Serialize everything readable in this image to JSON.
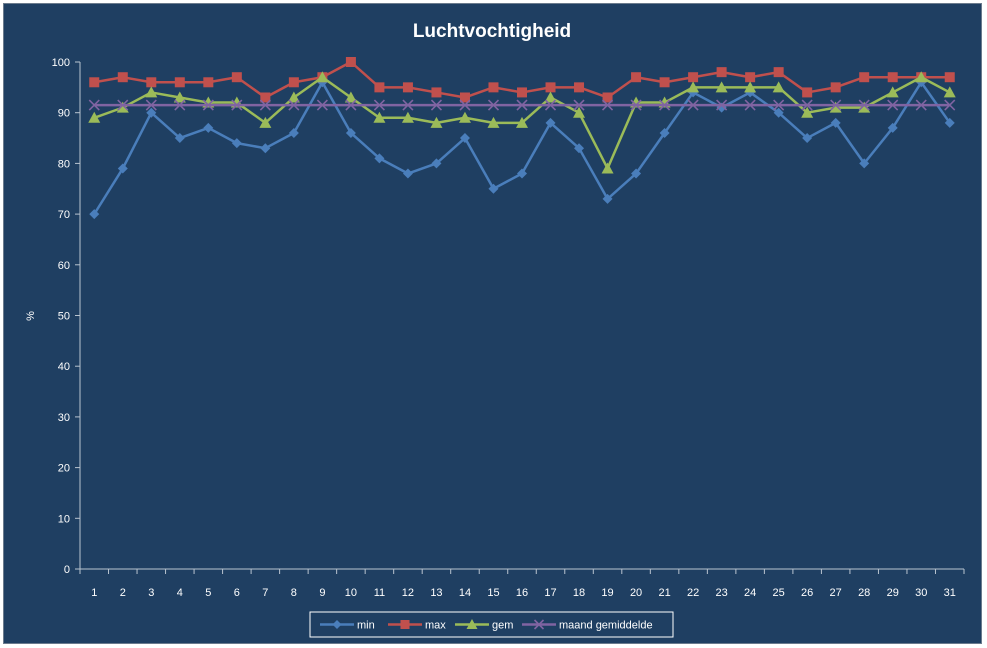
{
  "chart_data": {
    "type": "line",
    "title": "Luchtvochtigheid",
    "xlabel": "",
    "ylabel": "%",
    "ylim": [
      0,
      100
    ],
    "yticks": [
      0,
      10,
      20,
      30,
      40,
      50,
      60,
      70,
      80,
      90,
      100
    ],
    "grid": false,
    "legend_position": "bottom",
    "x": [
      "1",
      "2",
      "3",
      "4",
      "5",
      "6",
      "7",
      "8",
      "9",
      "10",
      "11",
      "12",
      "13",
      "14",
      "15",
      "16",
      "17",
      "18",
      "19",
      "20",
      "21",
      "22",
      "23",
      "24",
      "25",
      "26",
      "27",
      "28",
      "29",
      "30",
      "31"
    ],
    "series": [
      {
        "name": "min",
        "color": "#4a7ebb",
        "marker": "diamond",
        "values": [
          70,
          79,
          90,
          85,
          87,
          84,
          83,
          86,
          96,
          86,
          81,
          78,
          80,
          85,
          75,
          78,
          88,
          83,
          73,
          78,
          86,
          94,
          91,
          94,
          90,
          85,
          88,
          80,
          87,
          96,
          88
        ]
      },
      {
        "name": "max",
        "color": "#c0504d",
        "marker": "square",
        "values": [
          96,
          97,
          96,
          96,
          96,
          97,
          93,
          96,
          97,
          100,
          95,
          95,
          94,
          93,
          95,
          94,
          95,
          95,
          93,
          97,
          96,
          97,
          98,
          97,
          98,
          94,
          95,
          97,
          97,
          97,
          97
        ]
      },
      {
        "name": "gem",
        "color": "#9bbb59",
        "marker": "triangle",
        "values": [
          89,
          91,
          94,
          93,
          92,
          92,
          88,
          93,
          97,
          93,
          89,
          89,
          88,
          89,
          88,
          88,
          93,
          90,
          79,
          92,
          92,
          95,
          95,
          95,
          95,
          90,
          91,
          91,
          94,
          97,
          94
        ]
      },
      {
        "name": "maand gemiddelde",
        "color": "#8064a2",
        "marker": "x",
        "values": [
          91.5,
          91.5,
          91.5,
          91.5,
          91.5,
          91.5,
          91.5,
          91.5,
          91.5,
          91.5,
          91.5,
          91.5,
          91.5,
          91.5,
          91.5,
          91.5,
          91.5,
          91.5,
          91.5,
          91.5,
          91.5,
          91.5,
          91.5,
          91.5,
          91.5,
          91.5,
          91.5,
          91.5,
          91.5,
          91.5,
          91.5
        ]
      }
    ]
  }
}
